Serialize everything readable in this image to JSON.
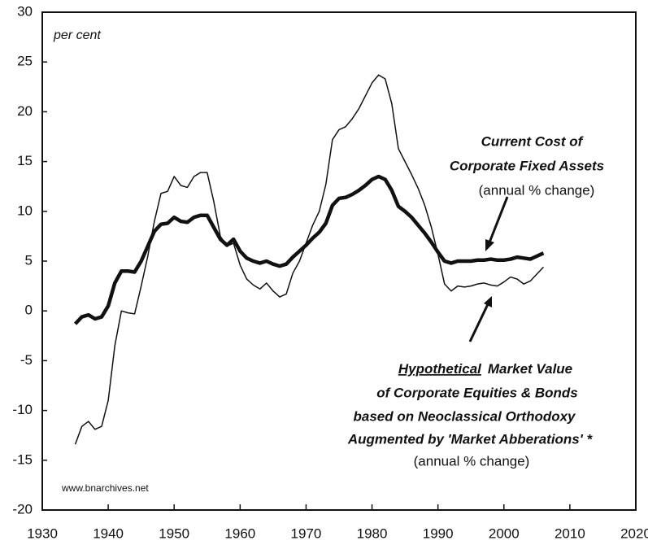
{
  "chart_data": {
    "type": "line",
    "y_annotation": "per cent",
    "source": "www.bnarchives.net",
    "x": [
      1935,
      1936,
      1937,
      1938,
      1939,
      1940,
      1941,
      1942,
      1943,
      1944,
      1945,
      1946,
      1947,
      1948,
      1949,
      1950,
      1951,
      1952,
      1953,
      1954,
      1955,
      1956,
      1957,
      1958,
      1959,
      1960,
      1961,
      1962,
      1963,
      1964,
      1965,
      1966,
      1967,
      1968,
      1969,
      1970,
      1971,
      1972,
      1973,
      1974,
      1975,
      1976,
      1977,
      1978,
      1979,
      1980,
      1981,
      1982,
      1983,
      1984,
      1985,
      1986,
      1987,
      1988,
      1989,
      1990,
      1991,
      1992,
      1993,
      1994,
      1995,
      1996,
      1997,
      1998,
      1999,
      2000,
      2001,
      2002,
      2003,
      2004,
      2005,
      2006
    ],
    "series": [
      {
        "color": "#111111",
        "width": 4.5,
        "values": [
          -1.3,
          -0.6,
          -0.4,
          -0.8,
          -0.6,
          0.5,
          2.8,
          4.0,
          4.0,
          3.9,
          5.0,
          6.5,
          8.0,
          8.7,
          8.8,
          9.4,
          9.0,
          8.9,
          9.4,
          9.6,
          9.6,
          8.4,
          7.2,
          6.6,
          7.2,
          6.0,
          5.3,
          5.0,
          4.8,
          5.0,
          4.7,
          4.5,
          4.7,
          5.4,
          6.0,
          6.6,
          7.3,
          7.9,
          8.8,
          10.6,
          11.3,
          11.4,
          11.7,
          12.1,
          12.6,
          13.2,
          13.5,
          13.2,
          12.1,
          10.5,
          10.0,
          9.4,
          8.6,
          7.8,
          6.9,
          5.9,
          5.0,
          4.8,
          5.0,
          5.0,
          5.0,
          5.1,
          5.1,
          5.2,
          5.1,
          5.1,
          5.2,
          5.4,
          5.3,
          5.2,
          5.5,
          5.8
        ]
      },
      {
        "color": "#111111",
        "width": 1.5,
        "values": [
          -13.4,
          -11.6,
          -11.1,
          -11.9,
          -11.6,
          -9.0,
          -3.5,
          0,
          -0.2,
          -0.3,
          2.5,
          5.5,
          9.0,
          11.8,
          12.0,
          13.5,
          12.6,
          12.4,
          13.5,
          13.9,
          13.9,
          11.0,
          7.5,
          6.5,
          6.8,
          4.6,
          3.2,
          2.6,
          2.2,
          2.8,
          2.0,
          1.4,
          1.7,
          3.8,
          5.0,
          6.8,
          8.6,
          10.0,
          12.7,
          17.2,
          18.2,
          18.5,
          19.3,
          20.3,
          21.6,
          22.9,
          23.7,
          23.3,
          20.8,
          16.3,
          15.0,
          13.7,
          12.3,
          10.6,
          8.4,
          5.7,
          2.7,
          2.0,
          2.5,
          2.4,
          2.5,
          2.7,
          2.8,
          2.6,
          2.5,
          2.9,
          3.4,
          3.2,
          2.7,
          3.0,
          3.7,
          4.4
        ]
      }
    ],
    "annotation_1": {
      "lines": [
        "Current Cost of",
        "Corporate Fixed Assets"
      ],
      "note": "(annual % change)"
    },
    "annotation_2": {
      "emphasis": "Hypothetical",
      "first_line": "Market Value",
      "lines": [
        "of Corporate Equities & Bonds",
        "based on Neoclassical Orthodoxy",
        "Augmented by 'Market Abberations' *"
      ],
      "note": "(annual % change)"
    },
    "xlim": [
      1930,
      2020
    ],
    "xticks": [
      1930,
      1940,
      1950,
      1960,
      1970,
      1980,
      1990,
      2000,
      2010,
      2020
    ],
    "ylim": [
      -20,
      30
    ],
    "yticks": [
      -20,
      -15,
      -10,
      -5,
      0,
      5,
      10,
      15,
      20,
      25,
      30
    ]
  }
}
